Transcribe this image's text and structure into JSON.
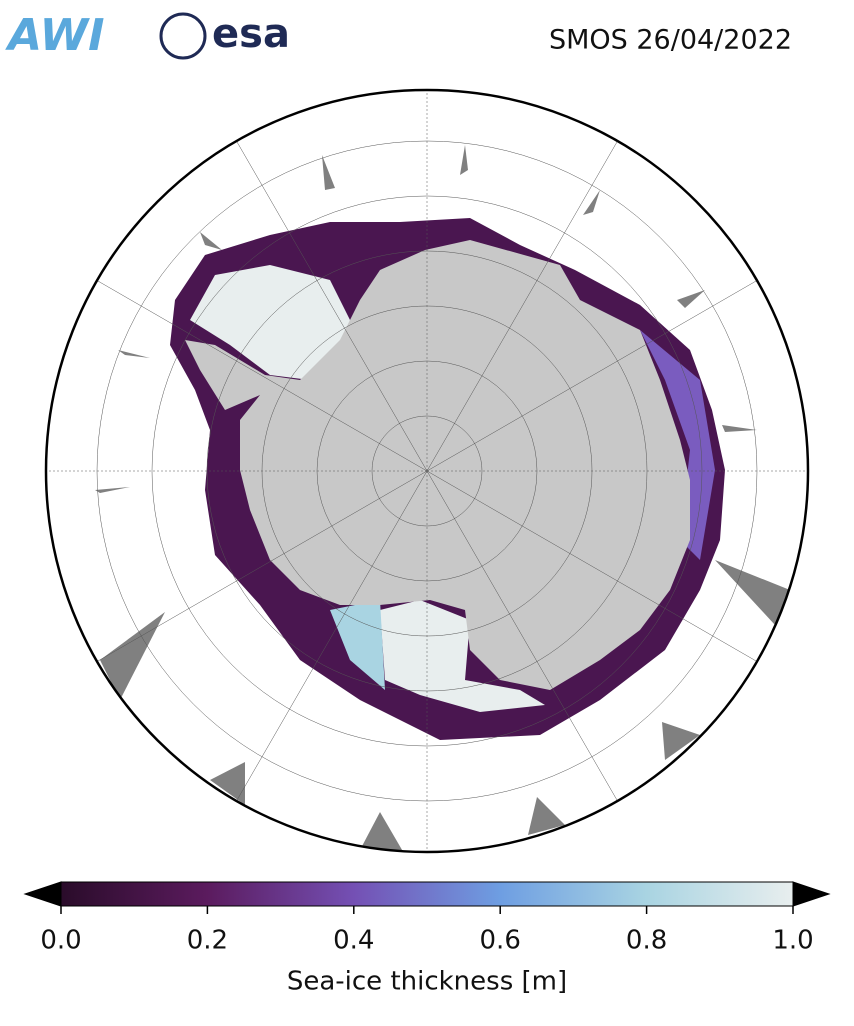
{
  "header": {
    "logos": [
      "AWI",
      "esa"
    ],
    "title": "SMOS 26/04/2022"
  },
  "map": {
    "colorbar": {
      "label": "Sea-ice thickness [m]",
      "lim": [
        0,
        1
      ],
      "ticks": [
        {
          "value": 0,
          "label": "0.0"
        },
        0.2,
        0.4,
        0.6,
        0.8,
        {
          "value": 1,
          "label": "1.0"
        }
      ],
      "colors": [
        "#2a0c2a",
        "#5b1b5e",
        "#7450b4",
        "#6e9ee2",
        "#a9d4e2",
        "#e8eeee"
      ]
    }
  }
}
